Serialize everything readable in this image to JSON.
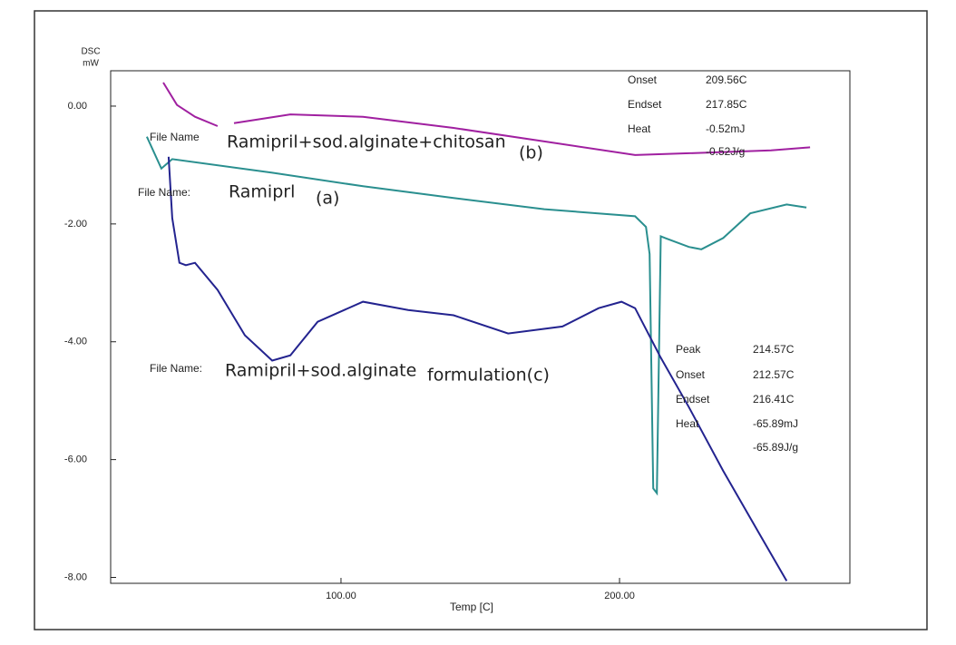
{
  "chart_data": {
    "type": "line",
    "y_label": [
      "DSC",
      "mW"
    ],
    "x_label": "Temp  [C]",
    "xlim": [
      17.3,
      282.7
    ],
    "ylim": [
      -8.1,
      0.6
    ],
    "xticks": [
      {
        "value": 100,
        "label": "100.00"
      },
      {
        "value": 200,
        "label": "200.00"
      }
    ],
    "yticks": [
      {
        "value": 0,
        "label": "0.00"
      },
      {
        "value": -2,
        "label": "-2.00"
      },
      {
        "value": -4,
        "label": "-4.00"
      },
      {
        "value": -6,
        "label": "-6.00"
      },
      {
        "value": -8,
        "label": "-8.00"
      }
    ],
    "series": [
      {
        "color": "#a020a0",
        "x": [
          36.2,
          41.1,
          47.6,
          55.7,
          null,
          61.6,
          81.8,
          107.9,
          140.4,
          173,
          205.6,
          225,
          254.4,
          268.4
        ],
        "values": [
          0.4,
          0.02,
          -0.18,
          -0.34,
          null,
          -0.29,
          -0.14,
          -0.18,
          -0.37,
          -0.6,
          -0.83,
          -0.8,
          -0.75,
          -0.7
        ]
      },
      {
        "color": "#2a8f8f",
        "x": [
          30.3,
          35.5,
          39.4,
          75.3,
          107.9,
          140.4,
          173,
          205.6,
          209.5,
          210.8,
          212.1,
          213.4,
          214.8,
          216.4,
          224.9,
          229.4,
          237.2,
          246.9,
          260,
          267.1
        ],
        "values": [
          -0.52,
          -1.06,
          -0.9,
          -1.13,
          -1.36,
          -1.56,
          -1.75,
          -1.87,
          -2.05,
          -2.51,
          -6.49,
          -6.57,
          -2.21,
          -2.24,
          -2.39,
          -2.43,
          -2.24,
          -1.82,
          -1.67,
          -1.72
        ]
      },
      {
        "color": "#23238f",
        "x": [
          38.1,
          39.4,
          42,
          44.3,
          47.6,
          55.7,
          65.5,
          75.3,
          81.8,
          91.6,
          107.9,
          124.1,
          140.4,
          160,
          179.5,
          192.5,
          200.7,
          205.6,
          214.8,
          224.9,
          237.2,
          250.2,
          260
        ],
        "values": [
          -0.86,
          -1.9,
          -2.66,
          -2.7,
          -2.66,
          -3.12,
          -3.89,
          -4.32,
          -4.23,
          -3.66,
          -3.32,
          -3.46,
          -3.55,
          -3.86,
          -3.74,
          -3.43,
          -3.32,
          -3.43,
          -4.27,
          -5.11,
          -6.19,
          -7.26,
          -8.06
        ]
      }
    ],
    "annotations": [
      "File Name",
      "Ramipril+sod.alginate+chitosan",
      "(b)",
      "File Name:",
      "Ramiprl",
      "(a)",
      "File Name:",
      "Ramipril+sod.alginate",
      "formulation(c)",
      "Onset",
      "209.56C",
      "Endset",
      "217.85C",
      "Heat",
      "-0.52mJ",
      "-0.52J/g",
      "Peak",
      "214.57C",
      "Onset",
      "212.57C",
      "Endset",
      "216.41C",
      "Heat",
      "-65.89mJ",
      "-65.89J/g"
    ]
  }
}
